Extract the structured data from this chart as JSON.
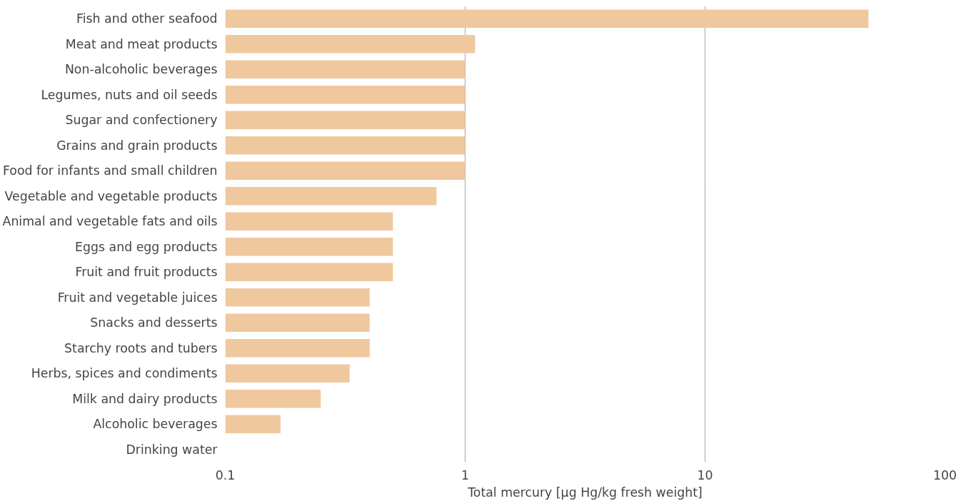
{
  "chart_data": {
    "type": "bar",
    "orientation": "horizontal",
    "log": "x",
    "xlabel": "Total mercury [µg Hg/kg fresh weight]",
    "categories": [
      "Fish and other seafood",
      "Meat and meat products",
      "Non-alcoholic beverages",
      "Legumes, nuts and oil seeds",
      "Sugar and confectionery",
      "Grains and grain products",
      "Food for infants and small children",
      "Vegetable and vegetable products",
      "Animal and vegetable fats and oils",
      "Eggs and egg products",
      "Fruit and fruit products",
      "Fruit and vegetable juices",
      "Snacks and desserts",
      "Starchy roots and tubers",
      "Herbs, spices and condiments",
      "Milk and dairy products",
      "Alcoholic beverages",
      "Drinking water"
    ],
    "values": [
      48,
      1.1,
      1,
      1,
      1,
      1,
      1,
      0.76,
      0.5,
      0.5,
      0.5,
      0.4,
      0.4,
      0.4,
      0.33,
      0.25,
      0.17,
      null
    ],
    "color": "#f0c89e",
    "xlim": [
      0.1,
      100
    ],
    "xticks": [
      0.1,
      1,
      10,
      100
    ],
    "grid": "x"
  }
}
